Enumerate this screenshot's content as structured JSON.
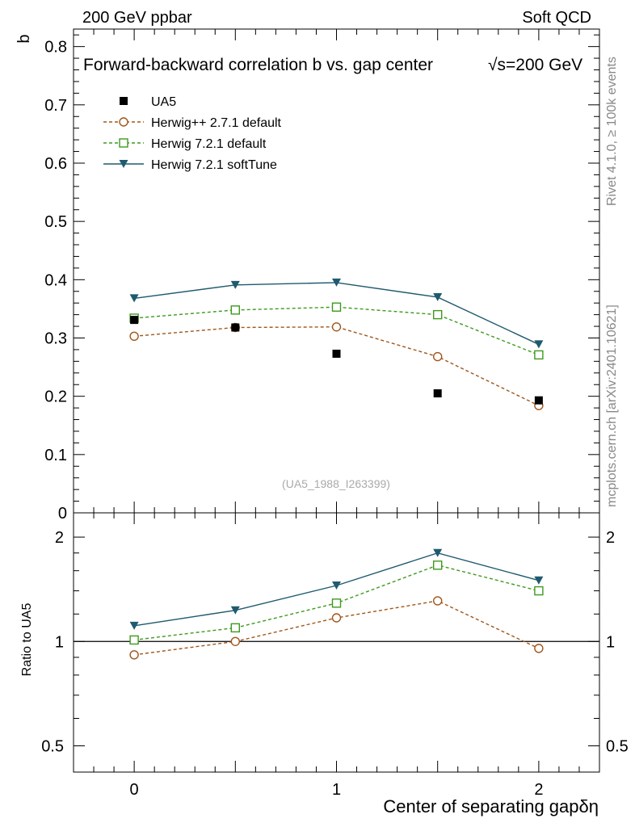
{
  "header": {
    "left": "200 GeV ppbar",
    "right": "Soft QCD"
  },
  "side_labels": {
    "rivet": "Rivet 4.1.0, ≥ 100k events",
    "mcplots": "mcplots.cern.ch [arXiv:2401.10621]"
  },
  "watermark": "(UA5_1988_I263399)",
  "chart_data": [
    {
      "type": "line",
      "title": "Forward-backward correlation b  vs. gap center",
      "title_energy": "√s=200 GeV",
      "xlabel": "Center of separating gapδη",
      "ylabel": "b",
      "xlim": [
        -0.3,
        2.3
      ],
      "ylim": [
        0,
        0.83
      ],
      "yticks": [
        0,
        0.1,
        0.2,
        0.3,
        0.4,
        0.5,
        0.6,
        0.7,
        0.8
      ],
      "ytick_labels": [
        "0",
        "0.1",
        "0.2",
        "0.3",
        "0.4",
        "0.5",
        "0.6",
        "0.7",
        "0.8"
      ],
      "x": [
        0,
        0.5,
        1,
        1.5,
        2
      ],
      "series": [
        {
          "name": "UA5",
          "kind": "data",
          "marker": "filled-square",
          "color": "#000000",
          "values": [
            0.331,
            0.318,
            0.273,
            0.205,
            0.193
          ]
        },
        {
          "name": "Herwig++ 2.7.1 default",
          "kind": "mc",
          "marker": "open-circle",
          "dash": "dashed",
          "color": "#a0561a",
          "values": [
            0.303,
            0.318,
            0.319,
            0.268,
            0.184
          ]
        },
        {
          "name": "Herwig 7.2.1 default",
          "kind": "mc",
          "marker": "open-square",
          "dash": "dashed",
          "color": "#3d9a1e",
          "values": [
            0.334,
            0.348,
            0.353,
            0.34,
            0.271
          ]
        },
        {
          "name": "Herwig 7.2.1 softTune",
          "kind": "mc",
          "marker": "filled-triangle-down",
          "dash": "solid",
          "color": "#1f5a6e",
          "values": [
            0.368,
            0.391,
            0.395,
            0.37,
            0.289
          ]
        }
      ]
    },
    {
      "type": "line",
      "title": "",
      "ylabel": "Ratio to UA5",
      "scale": "log",
      "ylim": [
        0.42,
        2.35
      ],
      "yticks": [
        0.5,
        1,
        2
      ],
      "ytick_labels": [
        "0.5",
        "1",
        "2"
      ],
      "xticks": [
        0,
        1,
        2
      ],
      "xtick_labels": [
        "0",
        "1",
        "2"
      ],
      "x": [
        0,
        0.5,
        1,
        1.5,
        2
      ],
      "reference_line": 1,
      "series": [
        {
          "name": "Herwig++ 2.7.1 default",
          "marker": "open-circle",
          "dash": "dashed",
          "color": "#a0561a",
          "values": [
            0.915,
            1.0,
            1.17,
            1.31,
            0.955
          ]
        },
        {
          "name": "Herwig 7.2.1 default",
          "marker": "open-square",
          "dash": "dashed",
          "color": "#3d9a1e",
          "values": [
            1.01,
            1.095,
            1.29,
            1.66,
            1.4
          ]
        },
        {
          "name": "Herwig 7.2.1 softTune",
          "marker": "filled-triangle-down",
          "dash": "solid",
          "color": "#1f5a6e",
          "values": [
            1.11,
            1.23,
            1.45,
            1.8,
            1.5
          ]
        }
      ]
    }
  ]
}
